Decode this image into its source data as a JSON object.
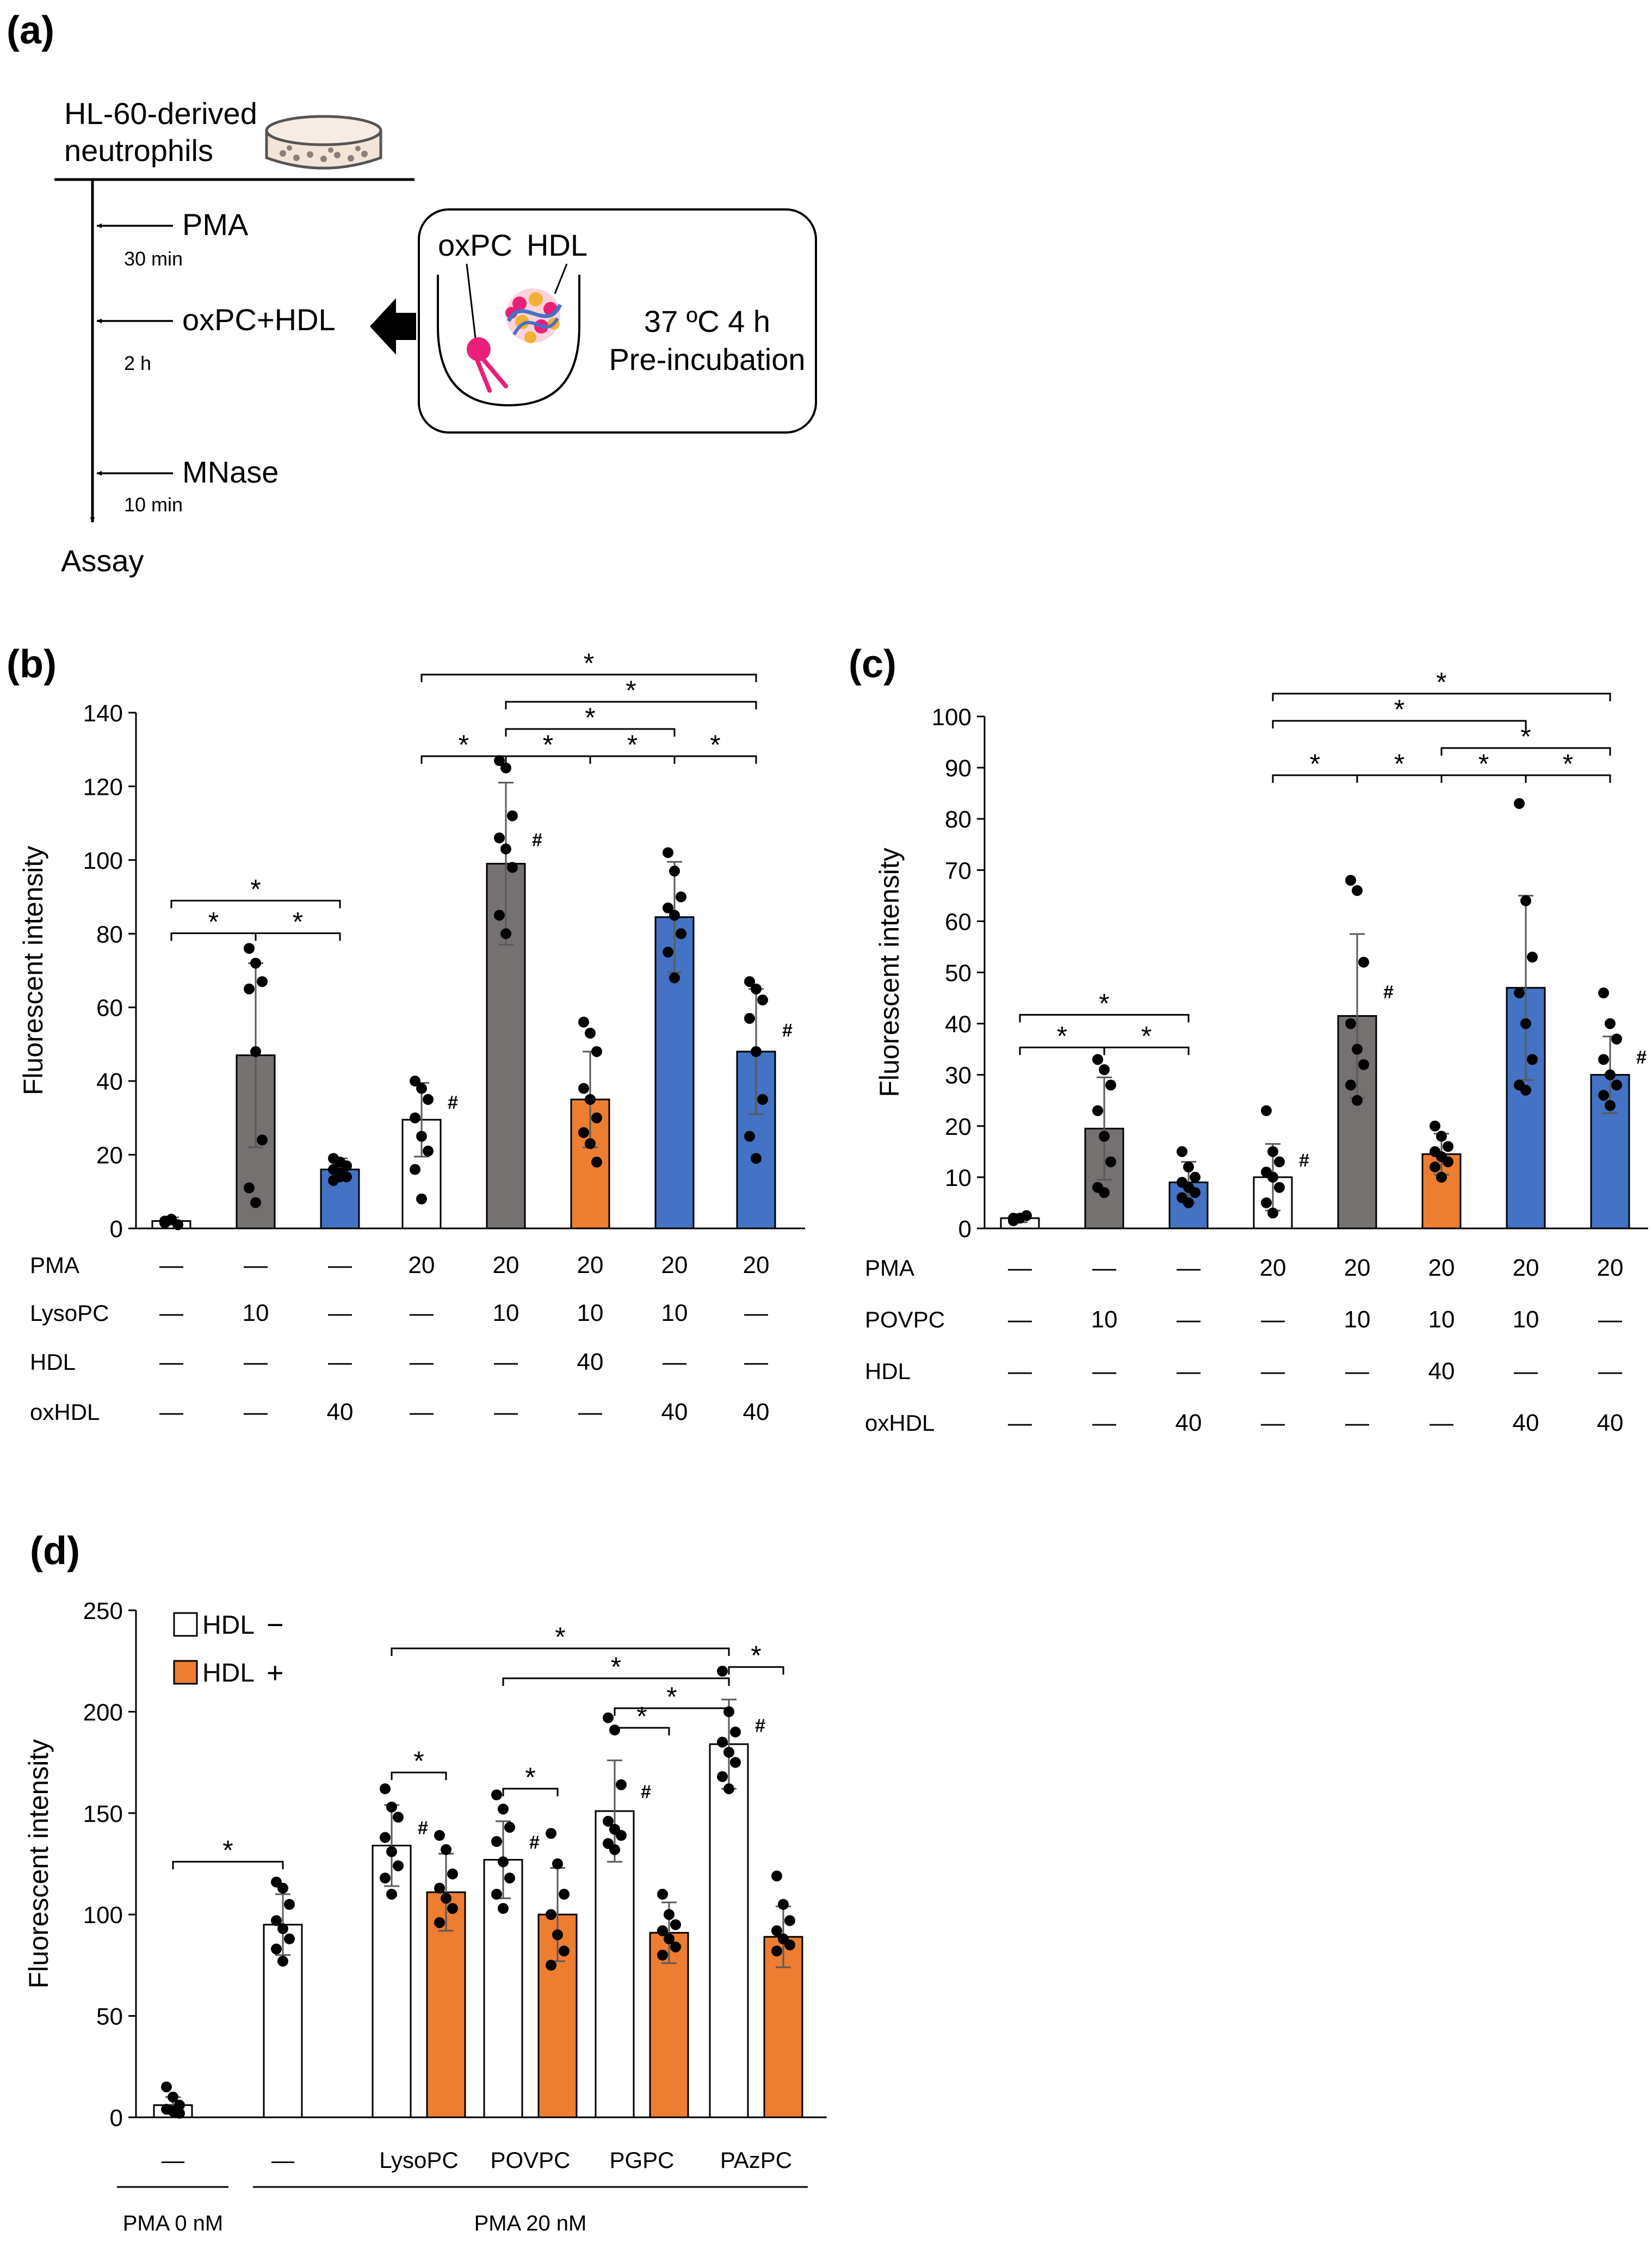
{
  "colors": {
    "white": "#ffffff",
    "gray": "#767171",
    "blue": "#4472C4",
    "orange": "#ED7D31",
    "pink": "#E8207A",
    "black": "#000000",
    "errbar": "#595959"
  },
  "panel_a": {
    "label": "(a)",
    "cells": "HL-60-derived\nneutrophils",
    "steps": [
      {
        "agent": "PMA",
        "time": "30 min"
      },
      {
        "agent": "oxPC+HDL",
        "time": "2 h"
      },
      {
        "agent": "MNase",
        "time": "10 min"
      }
    ],
    "assay": "Assay",
    "inset": {
      "oxpc": "oxPC",
      "hdl": "HDL",
      "line1": "37 ºC 4 h",
      "line2": "Pre-incubation"
    }
  },
  "chart_data": [
    {
      "id": "b",
      "type": "bar",
      "panel_label": "(b)",
      "ylabel": "Fluorescent intensity",
      "ylim": [
        0,
        140
      ],
      "yticks": [
        0,
        20,
        40,
        60,
        80,
        100,
        120,
        140
      ],
      "values": [
        2,
        47,
        16,
        29.5,
        99,
        35,
        84.5,
        48
      ],
      "errors": [
        1,
        25,
        3,
        10,
        22,
        13,
        15,
        17
      ],
      "colors": [
        "white",
        "gray",
        "blue",
        "white",
        "gray",
        "orange",
        "blue",
        "blue"
      ],
      "points": [
        [
          1.5,
          2.5,
          1,
          2
        ],
        [
          76,
          72,
          67,
          65,
          48,
          24,
          11,
          7
        ],
        [
          19,
          18,
          17,
          16,
          15,
          14,
          13,
          14
        ],
        [
          40,
          38,
          35,
          30,
          25,
          21,
          16,
          8
        ],
        [
          127,
          125,
          112,
          106,
          103,
          98,
          85,
          80
        ],
        [
          56,
          53,
          48,
          38,
          35,
          30,
          26,
          23,
          18
        ],
        [
          102,
          97,
          90,
          87,
          85,
          80,
          75,
          68
        ],
        [
          67,
          65,
          62,
          57,
          48,
          35,
          25,
          19
        ]
      ],
      "hash": [
        3,
        4,
        7
      ],
      "treatment_rows": [
        {
          "label": "PMA",
          "values": [
            "—",
            "—",
            "—",
            "20",
            "20",
            "20",
            "20",
            "20"
          ]
        },
        {
          "label": "LysoPC",
          "values": [
            "—",
            "10",
            "—",
            "—",
            "10",
            "10",
            "10",
            "—"
          ]
        },
        {
          "label": "HDL",
          "values": [
            "—",
            "—",
            "—",
            "—",
            "—",
            "40",
            "—",
            "—"
          ]
        },
        {
          "label": "oxHDL",
          "values": [
            "—",
            "—",
            "40",
            "—",
            "—",
            "—",
            "40",
            "40"
          ]
        }
      ],
      "significance": [
        [
          0,
          1,
          1
        ],
        [
          1,
          2,
          1
        ],
        [
          0,
          2,
          2
        ],
        [
          3,
          4,
          1
        ],
        [
          4,
          5,
          1
        ],
        [
          5,
          6,
          1
        ],
        [
          6,
          7,
          1
        ],
        [
          4,
          6,
          2
        ],
        [
          4,
          7,
          3
        ],
        [
          3,
          7,
          4
        ]
      ],
      "sig_symbol": "*",
      "hash_symbol": "#"
    },
    {
      "id": "c",
      "type": "bar",
      "panel_label": "(c)",
      "ylabel": "Fluorescent intensity",
      "ylim": [
        0,
        100
      ],
      "yticks": [
        0,
        10,
        20,
        30,
        40,
        50,
        60,
        70,
        80,
        90,
        100
      ],
      "values": [
        2,
        19.5,
        9,
        10,
        41.5,
        14.5,
        47,
        30
      ],
      "errors": [
        0.8,
        10,
        4,
        6.5,
        16,
        4,
        18,
        7.5
      ],
      "colors": [
        "white",
        "gray",
        "blue",
        "white",
        "gray",
        "orange",
        "blue",
        "blue"
      ],
      "points": [
        [
          1.5,
          2,
          2.5,
          2
        ],
        [
          33,
          31,
          28,
          23,
          18,
          13,
          8,
          7
        ],
        [
          15,
          12,
          10,
          9,
          8,
          7,
          6,
          5
        ],
        [
          23,
          15,
          13,
          11,
          10,
          8,
          5,
          3
        ],
        [
          68,
          66,
          52,
          40,
          35,
          32,
          28,
          25
        ],
        [
          20,
          18,
          16,
          15,
          14,
          13,
          12,
          10
        ],
        [
          83,
          64,
          53,
          46,
          40,
          33,
          28,
          27
        ],
        [
          46,
          40,
          37,
          33,
          30,
          28,
          26,
          24
        ]
      ],
      "hash": [
        3,
        4,
        7
      ],
      "treatment_rows": [
        {
          "label": "PMA",
          "values": [
            "—",
            "—",
            "—",
            "20",
            "20",
            "20",
            "20",
            "20"
          ]
        },
        {
          "label": "POVPC",
          "values": [
            "—",
            "10",
            "—",
            "—",
            "10",
            "10",
            "10",
            "—"
          ]
        },
        {
          "label": "HDL",
          "values": [
            "—",
            "—",
            "—",
            "—",
            "—",
            "40",
            "—",
            "—"
          ]
        },
        {
          "label": "oxHDL",
          "values": [
            "—",
            "—",
            "40",
            "—",
            "—",
            "—",
            "40",
            "40"
          ]
        }
      ],
      "significance": [
        [
          0,
          1,
          1
        ],
        [
          1,
          2,
          1
        ],
        [
          0,
          2,
          2
        ],
        [
          3,
          4,
          1
        ],
        [
          4,
          5,
          1
        ],
        [
          5,
          6,
          1
        ],
        [
          6,
          7,
          1
        ],
        [
          5,
          7,
          2
        ],
        [
          3,
          6,
          3
        ],
        [
          3,
          7,
          4
        ]
      ],
      "sig_symbol": "*",
      "hash_symbol": "#"
    },
    {
      "id": "d",
      "type": "bar",
      "panel_label": "(d)",
      "ylabel": "Fluorescent intensity",
      "ylim": [
        0,
        250
      ],
      "yticks": [
        0,
        50,
        100,
        150,
        200,
        250
      ],
      "values": [
        6,
        95,
        134,
        111,
        127,
        100,
        151,
        91,
        184,
        89
      ],
      "errors": [
        4,
        15,
        20,
        19,
        19,
        23,
        25,
        15,
        22,
        15
      ],
      "colors": [
        "white",
        "white",
        "white",
        "orange",
        "white",
        "orange",
        "white",
        "orange",
        "white",
        "orange"
      ],
      "points": [
        [
          15,
          10,
          6,
          4,
          3,
          2
        ],
        [
          116,
          113,
          105,
          97,
          93,
          88,
          83,
          77
        ],
        [
          162,
          153,
          148,
          138,
          131,
          124,
          118,
          110
        ],
        [
          139,
          132,
          120,
          113,
          108,
          103,
          96
        ],
        [
          159,
          152,
          143,
          136,
          126,
          118,
          110,
          103
        ],
        [
          140,
          125,
          110,
          100,
          90,
          82,
          75
        ],
        [
          197,
          191,
          164,
          146,
          142,
          139,
          135,
          132
        ],
        [
          110,
          100,
          95,
          92,
          88,
          84,
          80
        ],
        [
          220,
          200,
          190,
          185,
          180,
          175,
          168,
          162
        ],
        [
          119,
          105,
          97,
          92,
          88,
          85,
          82
        ]
      ],
      "hash": [
        2,
        4,
        6,
        8
      ],
      "legend": [
        {
          "label": "HDL",
          "sign": "−",
          "color": "white"
        },
        {
          "label": "HDL",
          "sign": "+",
          "color": "orange"
        }
      ],
      "group_labels": [
        "—",
        "—",
        "LysoPC",
        "POVPC",
        "PGPC",
        "PAzPC"
      ],
      "pma_labels": [
        "PMA 0 nM",
        "PMA 20 nM"
      ],
      "significance": [
        [
          0,
          1,
          1
        ],
        [
          2,
          3,
          1
        ],
        [
          4,
          5,
          1
        ],
        [
          6,
          7,
          1
        ],
        [
          8,
          9,
          1
        ],
        [
          6,
          8,
          2
        ],
        [
          4,
          8,
          3
        ],
        [
          2,
          8,
          4
        ]
      ],
      "sig_symbol": "*",
      "hash_symbol": "#"
    }
  ]
}
